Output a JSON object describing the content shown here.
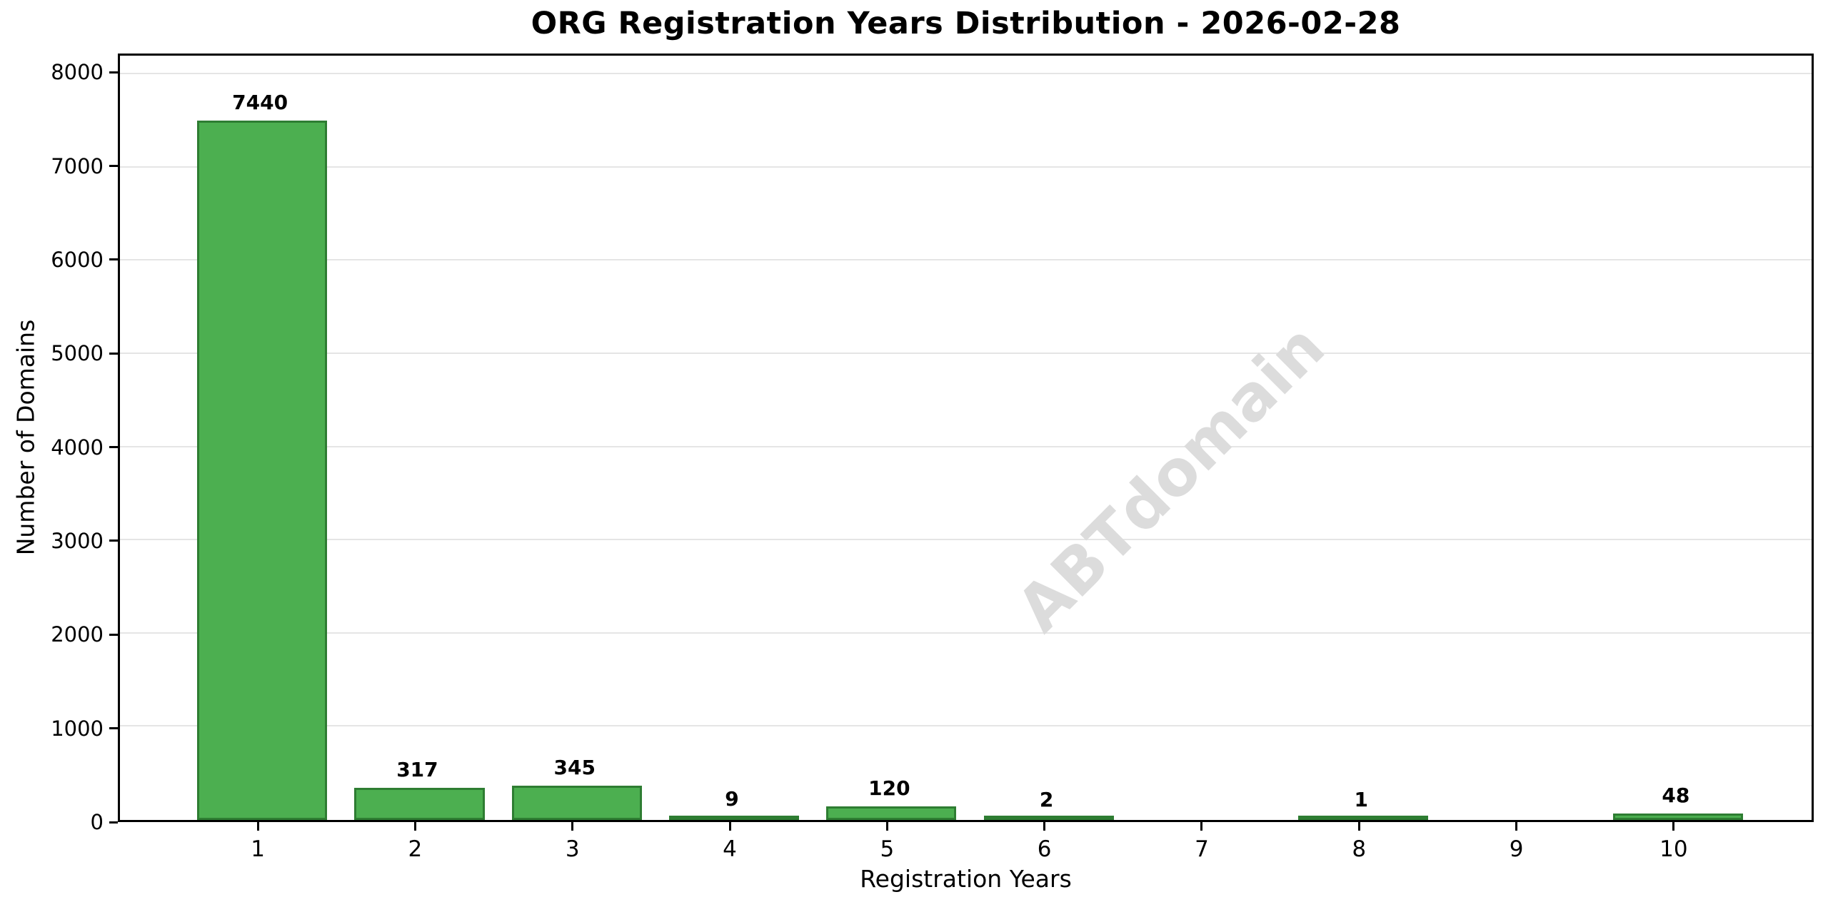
{
  "chart_data": {
    "type": "bar",
    "title": "ORG Registration Years Distribution - 2026-02-28",
    "xlabel": "Registration Years",
    "ylabel": "Number of Domains",
    "categories": [
      "1",
      "2",
      "3",
      "4",
      "5",
      "6",
      "7",
      "8",
      "9",
      "10"
    ],
    "values": [
      7440,
      317,
      345,
      9,
      120,
      2,
      0,
      1,
      0,
      48
    ],
    "bar_labels": [
      "7440",
      "317",
      "345",
      "9",
      "120",
      "2",
      "",
      "1",
      "",
      "48"
    ],
    "ylim": [
      0,
      8200
    ],
    "yticks": [
      0,
      1000,
      2000,
      3000,
      4000,
      5000,
      6000,
      7000,
      8000
    ],
    "grid": "horizontal",
    "legend_position": "none",
    "watermark": "ABTdomain",
    "colors": {
      "bar_fill": "#4CAF50",
      "bar_edge": "#2E7D32",
      "gridline": "#e5e5e5",
      "watermark": "#dcdcdc",
      "axis": "#000000"
    }
  }
}
